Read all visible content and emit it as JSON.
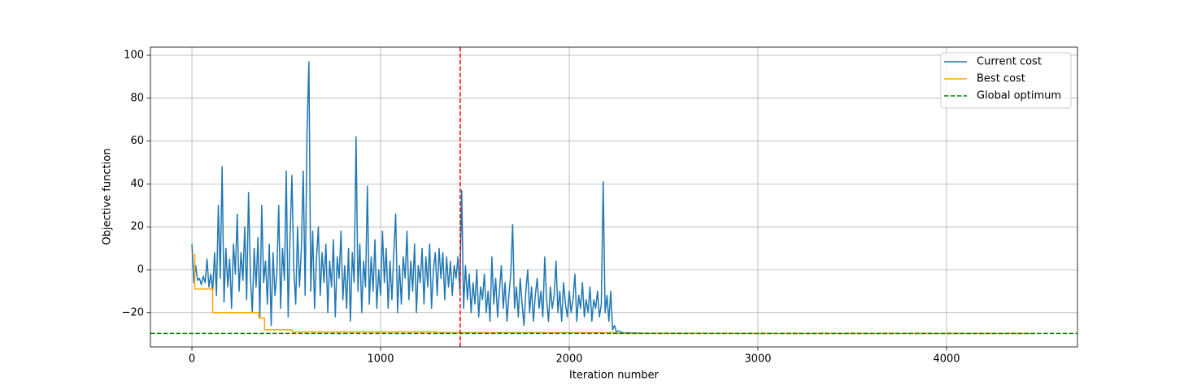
{
  "chart_data": {
    "type": "line",
    "xlabel": "Iteration number",
    "ylabel": "Objective function",
    "xlim": [
      -220,
      4694
    ],
    "ylim": [
      -36,
      103.8
    ],
    "xticks": [
      0,
      1000,
      2000,
      3000,
      4000
    ],
    "yticks": [
      {
        "value": -20,
        "label": "−20"
      },
      0,
      20,
      40,
      60,
      80,
      100
    ],
    "grid": true,
    "legend": "upper right",
    "series": [
      {
        "name": "Current cost",
        "color": "#1f77b4",
        "drawstyle": "default",
        "x": [
          0,
          10,
          20,
          30,
          40,
          50,
          60,
          70,
          80,
          90,
          100,
          110,
          120,
          130,
          140,
          150,
          160,
          170,
          180,
          190,
          200,
          210,
          220,
          230,
          240,
          250,
          260,
          270,
          280,
          290,
          300,
          310,
          320,
          330,
          340,
          350,
          360,
          370,
          380,
          390,
          400,
          410,
          420,
          430,
          440,
          450,
          460,
          470,
          480,
          490,
          500,
          510,
          520,
          530,
          540,
          550,
          560,
          570,
          580,
          590,
          600,
          610,
          620,
          630,
          640,
          650,
          660,
          670,
          680,
          690,
          700,
          710,
          720,
          730,
          740,
          750,
          760,
          770,
          780,
          790,
          800,
          810,
          820,
          830,
          840,
          850,
          860,
          870,
          880,
          890,
          900,
          910,
          920,
          930,
          940,
          950,
          960,
          970,
          980,
          990,
          1000,
          1010,
          1020,
          1030,
          1040,
          1050,
          1060,
          1070,
          1080,
          1090,
          1100,
          1110,
          1120,
          1130,
          1140,
          1150,
          1160,
          1170,
          1180,
          1190,
          1200,
          1210,
          1220,
          1230,
          1240,
          1250,
          1260,
          1270,
          1280,
          1290,
          1300,
          1310,
          1320,
          1330,
          1340,
          1350,
          1360,
          1370,
          1380,
          1390,
          1400,
          1410,
          1420,
          1430,
          1440,
          1450,
          1460,
          1470,
          1480,
          1490,
          1500,
          1510,
          1520,
          1530,
          1540,
          1550,
          1560,
          1570,
          1580,
          1590,
          1600,
          1610,
          1620,
          1630,
          1640,
          1650,
          1660,
          1670,
          1680,
          1690,
          1700,
          1710,
          1720,
          1730,
          1740,
          1750,
          1760,
          1770,
          1780,
          1790,
          1800,
          1810,
          1820,
          1830,
          1840,
          1850,
          1860,
          1870,
          1880,
          1890,
          1900,
          1910,
          1920,
          1930,
          1940,
          1950,
          1960,
          1970,
          1980,
          1990,
          2000,
          2010,
          2020,
          2030,
          2040,
          2050,
          2060,
          2070,
          2080,
          2090,
          2100,
          2110,
          2120,
          2130,
          2140,
          2150,
          2160,
          2170,
          2180,
          2190,
          2200,
          2210,
          2220,
          2230,
          2240,
          2250,
          2260,
          2270,
          2280,
          2290,
          2300,
          2400,
          3000,
          4000,
          4470
        ],
        "values": [
          12,
          -6,
          2,
          -5,
          -4,
          -7,
          -3,
          -6,
          5,
          -8,
          -2,
          -10,
          8,
          -12,
          30,
          -4,
          48,
          -15,
          10,
          -8,
          5,
          -18,
          12,
          -2,
          26,
          -10,
          8,
          -5,
          20,
          -14,
          36,
          -3,
          -20,
          10,
          -8,
          15,
          -22,
          30,
          -6,
          4,
          -16,
          12,
          -26,
          8,
          -12,
          -2,
          30,
          -18,
          10,
          -5,
          46,
          -22,
          15,
          44,
          0,
          -16,
          20,
          -8,
          10,
          46,
          -12,
          64,
          97,
          -10,
          18,
          -18,
          5,
          20,
          -12,
          8,
          -6,
          12,
          -20,
          4,
          -8,
          14,
          -22,
          6,
          -4,
          18,
          -14,
          2,
          -18,
          10,
          -24,
          8,
          -6,
          62,
          -10,
          12,
          -20,
          4,
          -8,
          39,
          -16,
          6,
          -10,
          14,
          -18,
          0,
          -12,
          18,
          -6,
          10,
          -18,
          4,
          -14,
          8,
          26,
          -20,
          2,
          -16,
          6,
          -4,
          18,
          -14,
          4,
          -10,
          12,
          -20,
          2,
          -6,
          10,
          -16,
          6,
          -8,
          12,
          -18,
          0,
          8,
          -12,
          10,
          -4,
          8,
          -14,
          6,
          -8,
          4,
          -12,
          2,
          -4,
          6,
          -10,
          37,
          -18,
          2,
          -14,
          -2,
          -20,
          -6,
          -16,
          0,
          -22,
          -8,
          -14,
          -2,
          -20,
          -10,
          -24,
          6,
          -16,
          -4,
          -22,
          -10,
          2,
          -18,
          -6,
          -24,
          -12,
          -2,
          21,
          -18,
          -8,
          -22,
          -4,
          -16,
          -26,
          -10,
          0,
          -20,
          -8,
          -24,
          -12,
          -4,
          -18,
          -10,
          -22,
          6,
          -14,
          -24,
          -8,
          -18,
          -12,
          4,
          -20,
          -10,
          -24,
          -6,
          -16,
          -22,
          -10,
          -20,
          -14,
          -2,
          -24,
          -12,
          -18,
          -6,
          -22,
          -14,
          -20,
          -8,
          -24,
          -14,
          -18,
          -10,
          -22,
          -16,
          41,
          -20,
          -12,
          -24,
          -10,
          -28,
          -26,
          -29,
          -28.5,
          -29,
          -29.2,
          -29.5,
          -29.4,
          -29.6,
          -29.7,
          -29.7,
          -29.7
        ]
      },
      {
        "name": "Best cost",
        "color": "#ffa500",
        "drawstyle": "steps-post",
        "x": [
          0,
          15,
          110,
          355,
          385,
          530,
          1300,
          2250,
          4470
        ],
        "values": [
          7,
          -9,
          -20,
          -22.5,
          -28,
          -29,
          -29.3,
          -29.7,
          -29.7
        ]
      }
    ],
    "hlines": [
      {
        "name": "Global optimum",
        "color": "#008000",
        "value": -29.7
      }
    ],
    "vlines": [
      {
        "color": "#ff0000",
        "value": 1422
      }
    ]
  }
}
